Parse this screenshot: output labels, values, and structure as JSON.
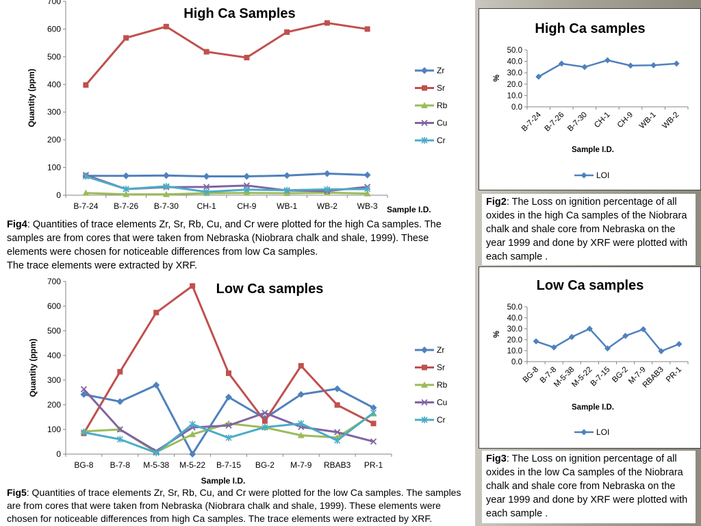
{
  "colors": {
    "Zr": "#4f81bd",
    "Sr": "#c0504d",
    "Rb": "#9bbb59",
    "Cu": "#8064a2",
    "Cr": "#4bacc6",
    "LOI": "#4f81bd"
  },
  "chart_data": [
    {
      "id": "fig4",
      "type": "line",
      "title": "High Ca Samples",
      "xlabel": "Sample I.D.",
      "ylabel": "Quantity (ppm)",
      "ylim": [
        0,
        700
      ],
      "yticks": [
        0,
        100,
        200,
        300,
        400,
        500,
        600,
        700
      ],
      "categories": [
        "B-7-24",
        "B-7-26",
        "B-7-30",
        "CH-1",
        "CH-9",
        "WB-1",
        "WB-2",
        "WB-3"
      ],
      "legend": "right",
      "series": [
        {
          "name": "Zr",
          "marker": "diamond",
          "values": [
            70,
            70,
            71,
            68,
            68,
            71,
            78,
            73
          ]
        },
        {
          "name": "Sr",
          "marker": "square",
          "values": [
            398,
            568,
            609,
            518,
            497,
            589,
            622,
            600
          ]
        },
        {
          "name": "Rb",
          "marker": "triangle",
          "values": [
            8,
            3,
            3,
            7,
            8,
            7,
            9,
            6
          ]
        },
        {
          "name": "Cu",
          "marker": "x",
          "values": [
            73,
            22,
            29,
            30,
            35,
            17,
            15,
            30
          ]
        },
        {
          "name": "Cr",
          "marker": "star",
          "values": [
            68,
            22,
            32,
            12,
            20,
            18,
            21,
            22
          ]
        }
      ]
    },
    {
      "id": "fig5",
      "type": "line",
      "title": "Low Ca samples",
      "xlabel": "Sample I.D.",
      "ylabel": "Quantity (ppm)",
      "ylim": [
        0,
        700
      ],
      "yticks": [
        0,
        100,
        200,
        300,
        400,
        500,
        600,
        700
      ],
      "categories": [
        "BG-8",
        "B-7-8",
        "M-5-38",
        "M-5-22",
        "B-7-15",
        "BG-2",
        "M-7-9",
        "RBAB3",
        "PR-1"
      ],
      "legend": "right",
      "series": [
        {
          "name": "Zr",
          "marker": "diamond",
          "values": [
            242,
            213,
            280,
            0,
            231,
            145,
            242,
            265,
            188
          ]
        },
        {
          "name": "Sr",
          "marker": "square",
          "values": [
            84,
            334,
            574,
            682,
            328,
            134,
            358,
            199,
            124
          ]
        },
        {
          "name": "Rb",
          "marker": "triangle",
          "values": [
            92,
            100,
            8,
            80,
            124,
            108,
            76,
            67,
            164
          ]
        },
        {
          "name": "Cu",
          "marker": "x",
          "values": [
            263,
            100,
            12,
            108,
            116,
            167,
            110,
            89,
            51
          ]
        },
        {
          "name": "Cr",
          "marker": "star",
          "values": [
            88,
            60,
            5,
            121,
            66,
            109,
            124,
            55,
            168
          ]
        }
      ]
    },
    {
      "id": "fig2",
      "type": "line",
      "title": "High Ca samples",
      "xlabel": "Sample I.D.",
      "ylabel": "%",
      "ylim": [
        0,
        50
      ],
      "yticks": [
        "0.0",
        "10.0",
        "20.0",
        "30.0",
        "40.0",
        "50.0"
      ],
      "categories": [
        "B-7-24",
        "B-7-26",
        "B-7-30",
        "CH-1",
        "CH-9",
        "WB-1",
        "WB-2"
      ],
      "legend": "bottom",
      "series": [
        {
          "name": "LOI",
          "marker": "diamond",
          "values": [
            26.5,
            38,
            35,
            41,
            36.3,
            36.6,
            38
          ]
        }
      ]
    },
    {
      "id": "fig3",
      "type": "line",
      "title": "Low Ca samples",
      "xlabel": "Sample I.D.",
      "ylabel": "%",
      "ylim": [
        0,
        50
      ],
      "yticks": [
        "0.0",
        "10.0",
        "20.0",
        "30.0",
        "40.0",
        "50.0"
      ],
      "categories": [
        "BG-8",
        "B-7-8",
        "M-5-38",
        "M-5-22",
        "B-7-15",
        "BG-2",
        "M-7-9",
        "RBAB3",
        "PR-1"
      ],
      "legend": "bottom",
      "series": [
        {
          "name": "LOI",
          "marker": "diamond",
          "values": [
            18.5,
            13,
            22.5,
            30,
            12,
            23.5,
            29.5,
            9.5,
            16
          ]
        }
      ]
    }
  ],
  "captions": {
    "fig4": {
      "label": "Fig4",
      "text": ": Quantities of trace elements Zr, Sr, Rb, Cu, and Cr were plotted for the high Ca samples. The samples are from cores that were taken from Nebraska (Niobrara chalk and shale, 1999). These elements were chosen for noticeable differences from low Ca samples.",
      "text2": "The trace elements were extracted by XRF."
    },
    "fig5": {
      "label": "Fig5",
      "text": ": Quantities of trace elements Zr, Sr, Rb, Cu, and Cr were plotted for the low Ca samples. The samples are from cores that were taken from Nebraska (Niobrara chalk and shale, 1999). These elements were chosen for noticeable differences from high Ca samples. The trace elements were extracted by XRF."
    },
    "fig2": {
      "label": "Fig2",
      "text": ": The Loss on ignition percentage of all oxides in the high Ca samples of the Niobrara chalk and shale core from Nebraska on the year 1999 and done by XRF were plotted with each sample ."
    },
    "fig3": {
      "label": "Fig3",
      "text": ": The Loss on ignition percentage of all oxides in the low Ca samples of the Niobrara chalk and shale core from Nebraska on the year 1999 and done by XRF were plotted with each sample ."
    }
  }
}
